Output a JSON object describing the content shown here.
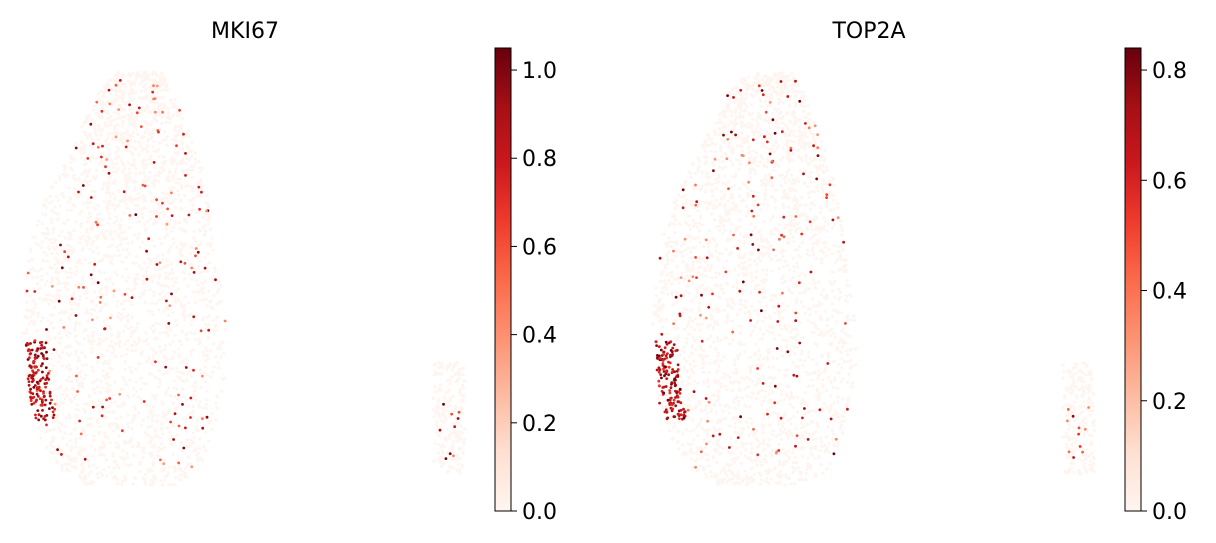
{
  "colors": {
    "background": "#ffffff",
    "colormap": "Reds",
    "colormap_stops": [
      "#fff5f0",
      "#fee0d2",
      "#fcbba1",
      "#fc9272",
      "#fb6a4a",
      "#ef3b2c",
      "#cb181d",
      "#a50f15",
      "#67000d"
    ]
  },
  "chart_data": [
    {
      "type": "scatter",
      "title": "MKI67",
      "xlabel": "",
      "ylabel": "",
      "axes_visible": false,
      "grid": false,
      "colorbar": {
        "vmin": 0.0,
        "vmax": 1.05,
        "ticks": [
          0.0,
          0.2,
          0.4,
          0.6,
          0.8,
          1.0
        ],
        "tick_labels": [
          "0.0",
          "0.2",
          "0.4",
          "0.6",
          "0.8",
          "1.0"
        ],
        "placement": "right"
      },
      "clusters": [
        {
          "name": "main",
          "expressing_fraction": 0.06
        },
        {
          "name": "minor",
          "expressing_fraction": 0.04
        }
      ],
      "hotspot": "dense high-expression cells on the left edge of the main cluster"
    },
    {
      "type": "scatter",
      "title": "TOP2A",
      "xlabel": "",
      "ylabel": "",
      "axes_visible": false,
      "grid": false,
      "colorbar": {
        "vmin": 0.0,
        "vmax": 0.84,
        "ticks": [
          0.0,
          0.2,
          0.4,
          0.6,
          0.8
        ],
        "tick_labels": [
          "0.0",
          "0.2",
          "0.4",
          "0.6",
          "0.8"
        ],
        "placement": "right"
      },
      "clusters": [
        {
          "name": "main",
          "expressing_fraction": 0.06
        },
        {
          "name": "minor",
          "expressing_fraction": 0.05
        }
      ],
      "hotspot": "dense high-expression cells on the left edge of the main cluster"
    }
  ]
}
